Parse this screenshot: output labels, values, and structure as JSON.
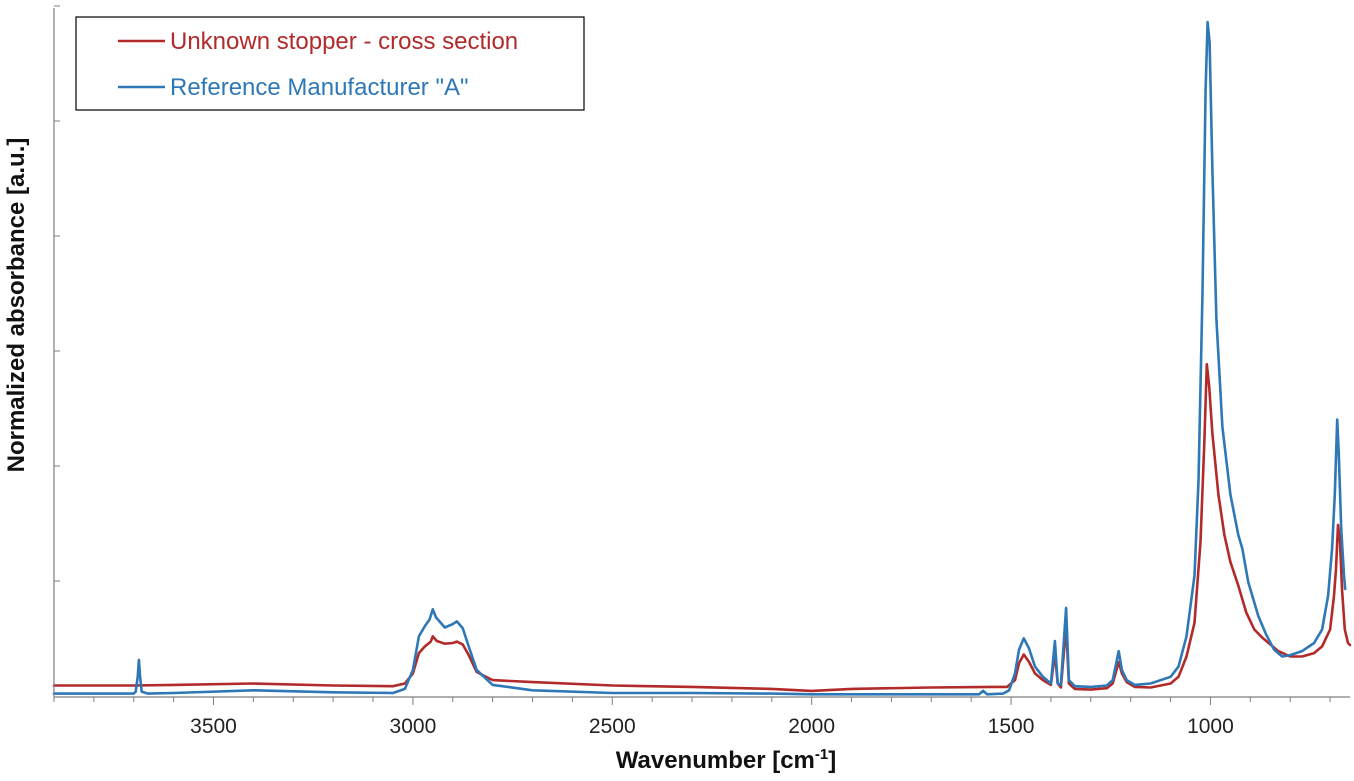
{
  "chart_data": {
    "type": "line",
    "title": "",
    "xlabel": "Wavenumber [cm",
    "xlabel_sup": "-1",
    "xlabel_end": "]",
    "ylabel": "Normalized absorbance [a.u.]",
    "xlim": [
      3900,
      650
    ],
    "x_reversed": true,
    "ylim": [
      0,
      1.0
    ],
    "x_ticks": [
      3500,
      3000,
      2500,
      2000,
      1500,
      1000
    ],
    "x_tick_labels": [
      "3500",
      "3000",
      "2500",
      "2000",
      "1500",
      "1000"
    ],
    "y_tick_values": [
      0,
      0.17,
      0.34,
      0.51,
      0.68,
      0.85,
      1.0
    ],
    "y_tick_labels_shown": false,
    "grid": false,
    "legend_position": "top-left",
    "series": [
      {
        "name": "Unknown stopper - cross section",
        "color": "#b22a2a",
        "points": [
          [
            3900,
            0.017
          ],
          [
            3700,
            0.017
          ],
          [
            3600,
            0.018
          ],
          [
            3400,
            0.02
          ],
          [
            3200,
            0.017
          ],
          [
            3050,
            0.016
          ],
          [
            3020,
            0.02
          ],
          [
            3000,
            0.035
          ],
          [
            2985,
            0.065
          ],
          [
            2970,
            0.075
          ],
          [
            2955,
            0.082
          ],
          [
            2950,
            0.09
          ],
          [
            2940,
            0.083
          ],
          [
            2920,
            0.079
          ],
          [
            2900,
            0.08
          ],
          [
            2890,
            0.082
          ],
          [
            2875,
            0.078
          ],
          [
            2860,
            0.062
          ],
          [
            2840,
            0.037
          ],
          [
            2800,
            0.025
          ],
          [
            2700,
            0.022
          ],
          [
            2500,
            0.017
          ],
          [
            2300,
            0.015
          ],
          [
            2100,
            0.012
          ],
          [
            2000,
            0.009
          ],
          [
            1900,
            0.012
          ],
          [
            1700,
            0.014
          ],
          [
            1550,
            0.015
          ],
          [
            1510,
            0.015
          ],
          [
            1490,
            0.025
          ],
          [
            1480,
            0.05
          ],
          [
            1468,
            0.063
          ],
          [
            1455,
            0.052
          ],
          [
            1440,
            0.035
          ],
          [
            1420,
            0.025
          ],
          [
            1400,
            0.018
          ],
          [
            1390,
            0.065
          ],
          [
            1383,
            0.02
          ],
          [
            1375,
            0.014
          ],
          [
            1362,
            0.105
          ],
          [
            1355,
            0.02
          ],
          [
            1340,
            0.012
          ],
          [
            1300,
            0.011
          ],
          [
            1260,
            0.013
          ],
          [
            1245,
            0.02
          ],
          [
            1230,
            0.052
          ],
          [
            1222,
            0.035
          ],
          [
            1210,
            0.022
          ],
          [
            1190,
            0.015
          ],
          [
            1150,
            0.014
          ],
          [
            1100,
            0.02
          ],
          [
            1080,
            0.03
          ],
          [
            1060,
            0.06
          ],
          [
            1040,
            0.11
          ],
          [
            1025,
            0.23
          ],
          [
            1015,
            0.38
          ],
          [
            1009,
            0.493
          ],
          [
            1003,
            0.46
          ],
          [
            995,
            0.39
          ],
          [
            980,
            0.3
          ],
          [
            965,
            0.24
          ],
          [
            950,
            0.2
          ],
          [
            930,
            0.165
          ],
          [
            910,
            0.125
          ],
          [
            890,
            0.1
          ],
          [
            870,
            0.088
          ],
          [
            850,
            0.078
          ],
          [
            830,
            0.068
          ],
          [
            800,
            0.06
          ],
          [
            770,
            0.06
          ],
          [
            740,
            0.065
          ],
          [
            720,
            0.075
          ],
          [
            700,
            0.1
          ],
          [
            690,
            0.15
          ],
          [
            685,
            0.19
          ],
          [
            680,
            0.255
          ],
          [
            675,
            0.23
          ],
          [
            670,
            0.16
          ],
          [
            663,
            0.1
          ],
          [
            655,
            0.08
          ],
          [
            650,
            0.077
          ]
        ]
      },
      {
        "name": "Reference Manufacturer \"A\"",
        "color": "#2e78b7",
        "points": [
          [
            3900,
            0.005
          ],
          [
            3700,
            0.005
          ],
          [
            3695,
            0.008
          ],
          [
            3690,
            0.03
          ],
          [
            3687,
            0.055
          ],
          [
            3684,
            0.03
          ],
          [
            3680,
            0.008
          ],
          [
            3665,
            0.005
          ],
          [
            3600,
            0.006
          ],
          [
            3400,
            0.01
          ],
          [
            3200,
            0.007
          ],
          [
            3050,
            0.006
          ],
          [
            3020,
            0.012
          ],
          [
            3000,
            0.04
          ],
          [
            2985,
            0.09
          ],
          [
            2970,
            0.105
          ],
          [
            2958,
            0.115
          ],
          [
            2950,
            0.13
          ],
          [
            2942,
            0.118
          ],
          [
            2920,
            0.103
          ],
          [
            2900,
            0.108
          ],
          [
            2890,
            0.112
          ],
          [
            2875,
            0.102
          ],
          [
            2860,
            0.075
          ],
          [
            2840,
            0.04
          ],
          [
            2800,
            0.018
          ],
          [
            2700,
            0.01
          ],
          [
            2500,
            0.006
          ],
          [
            2300,
            0.006
          ],
          [
            2100,
            0.005
          ],
          [
            2000,
            0.004
          ],
          [
            1900,
            0.004
          ],
          [
            1700,
            0.004
          ],
          [
            1580,
            0.004
          ],
          [
            1570,
            0.009
          ],
          [
            1560,
            0.004
          ],
          [
            1520,
            0.005
          ],
          [
            1505,
            0.01
          ],
          [
            1490,
            0.035
          ],
          [
            1480,
            0.07
          ],
          [
            1468,
            0.087
          ],
          [
            1455,
            0.072
          ],
          [
            1440,
            0.045
          ],
          [
            1420,
            0.03
          ],
          [
            1400,
            0.02
          ],
          [
            1390,
            0.083
          ],
          [
            1383,
            0.02
          ],
          [
            1375,
            0.018
          ],
          [
            1362,
            0.132
          ],
          [
            1355,
            0.025
          ],
          [
            1340,
            0.016
          ],
          [
            1300,
            0.015
          ],
          [
            1260,
            0.017
          ],
          [
            1245,
            0.025
          ],
          [
            1230,
            0.068
          ],
          [
            1222,
            0.04
          ],
          [
            1210,
            0.025
          ],
          [
            1190,
            0.018
          ],
          [
            1150,
            0.02
          ],
          [
            1100,
            0.03
          ],
          [
            1080,
            0.045
          ],
          [
            1060,
            0.09
          ],
          [
            1040,
            0.18
          ],
          [
            1030,
            0.32
          ],
          [
            1020,
            0.6
          ],
          [
            1012,
            0.9
          ],
          [
            1007,
            1.0
          ],
          [
            1002,
            0.97
          ],
          [
            995,
            0.78
          ],
          [
            985,
            0.56
          ],
          [
            970,
            0.4
          ],
          [
            950,
            0.3
          ],
          [
            930,
            0.24
          ],
          [
            920,
            0.22
          ],
          [
            905,
            0.17
          ],
          [
            880,
            0.12
          ],
          [
            860,
            0.092
          ],
          [
            840,
            0.07
          ],
          [
            820,
            0.06
          ],
          [
            800,
            0.062
          ],
          [
            770,
            0.068
          ],
          [
            740,
            0.08
          ],
          [
            720,
            0.1
          ],
          [
            705,
            0.15
          ],
          [
            695,
            0.22
          ],
          [
            688,
            0.3
          ],
          [
            682,
            0.411
          ],
          [
            678,
            0.36
          ],
          [
            672,
            0.25
          ],
          [
            665,
            0.18
          ],
          [
            662,
            0.16
          ]
        ]
      }
    ]
  }
}
